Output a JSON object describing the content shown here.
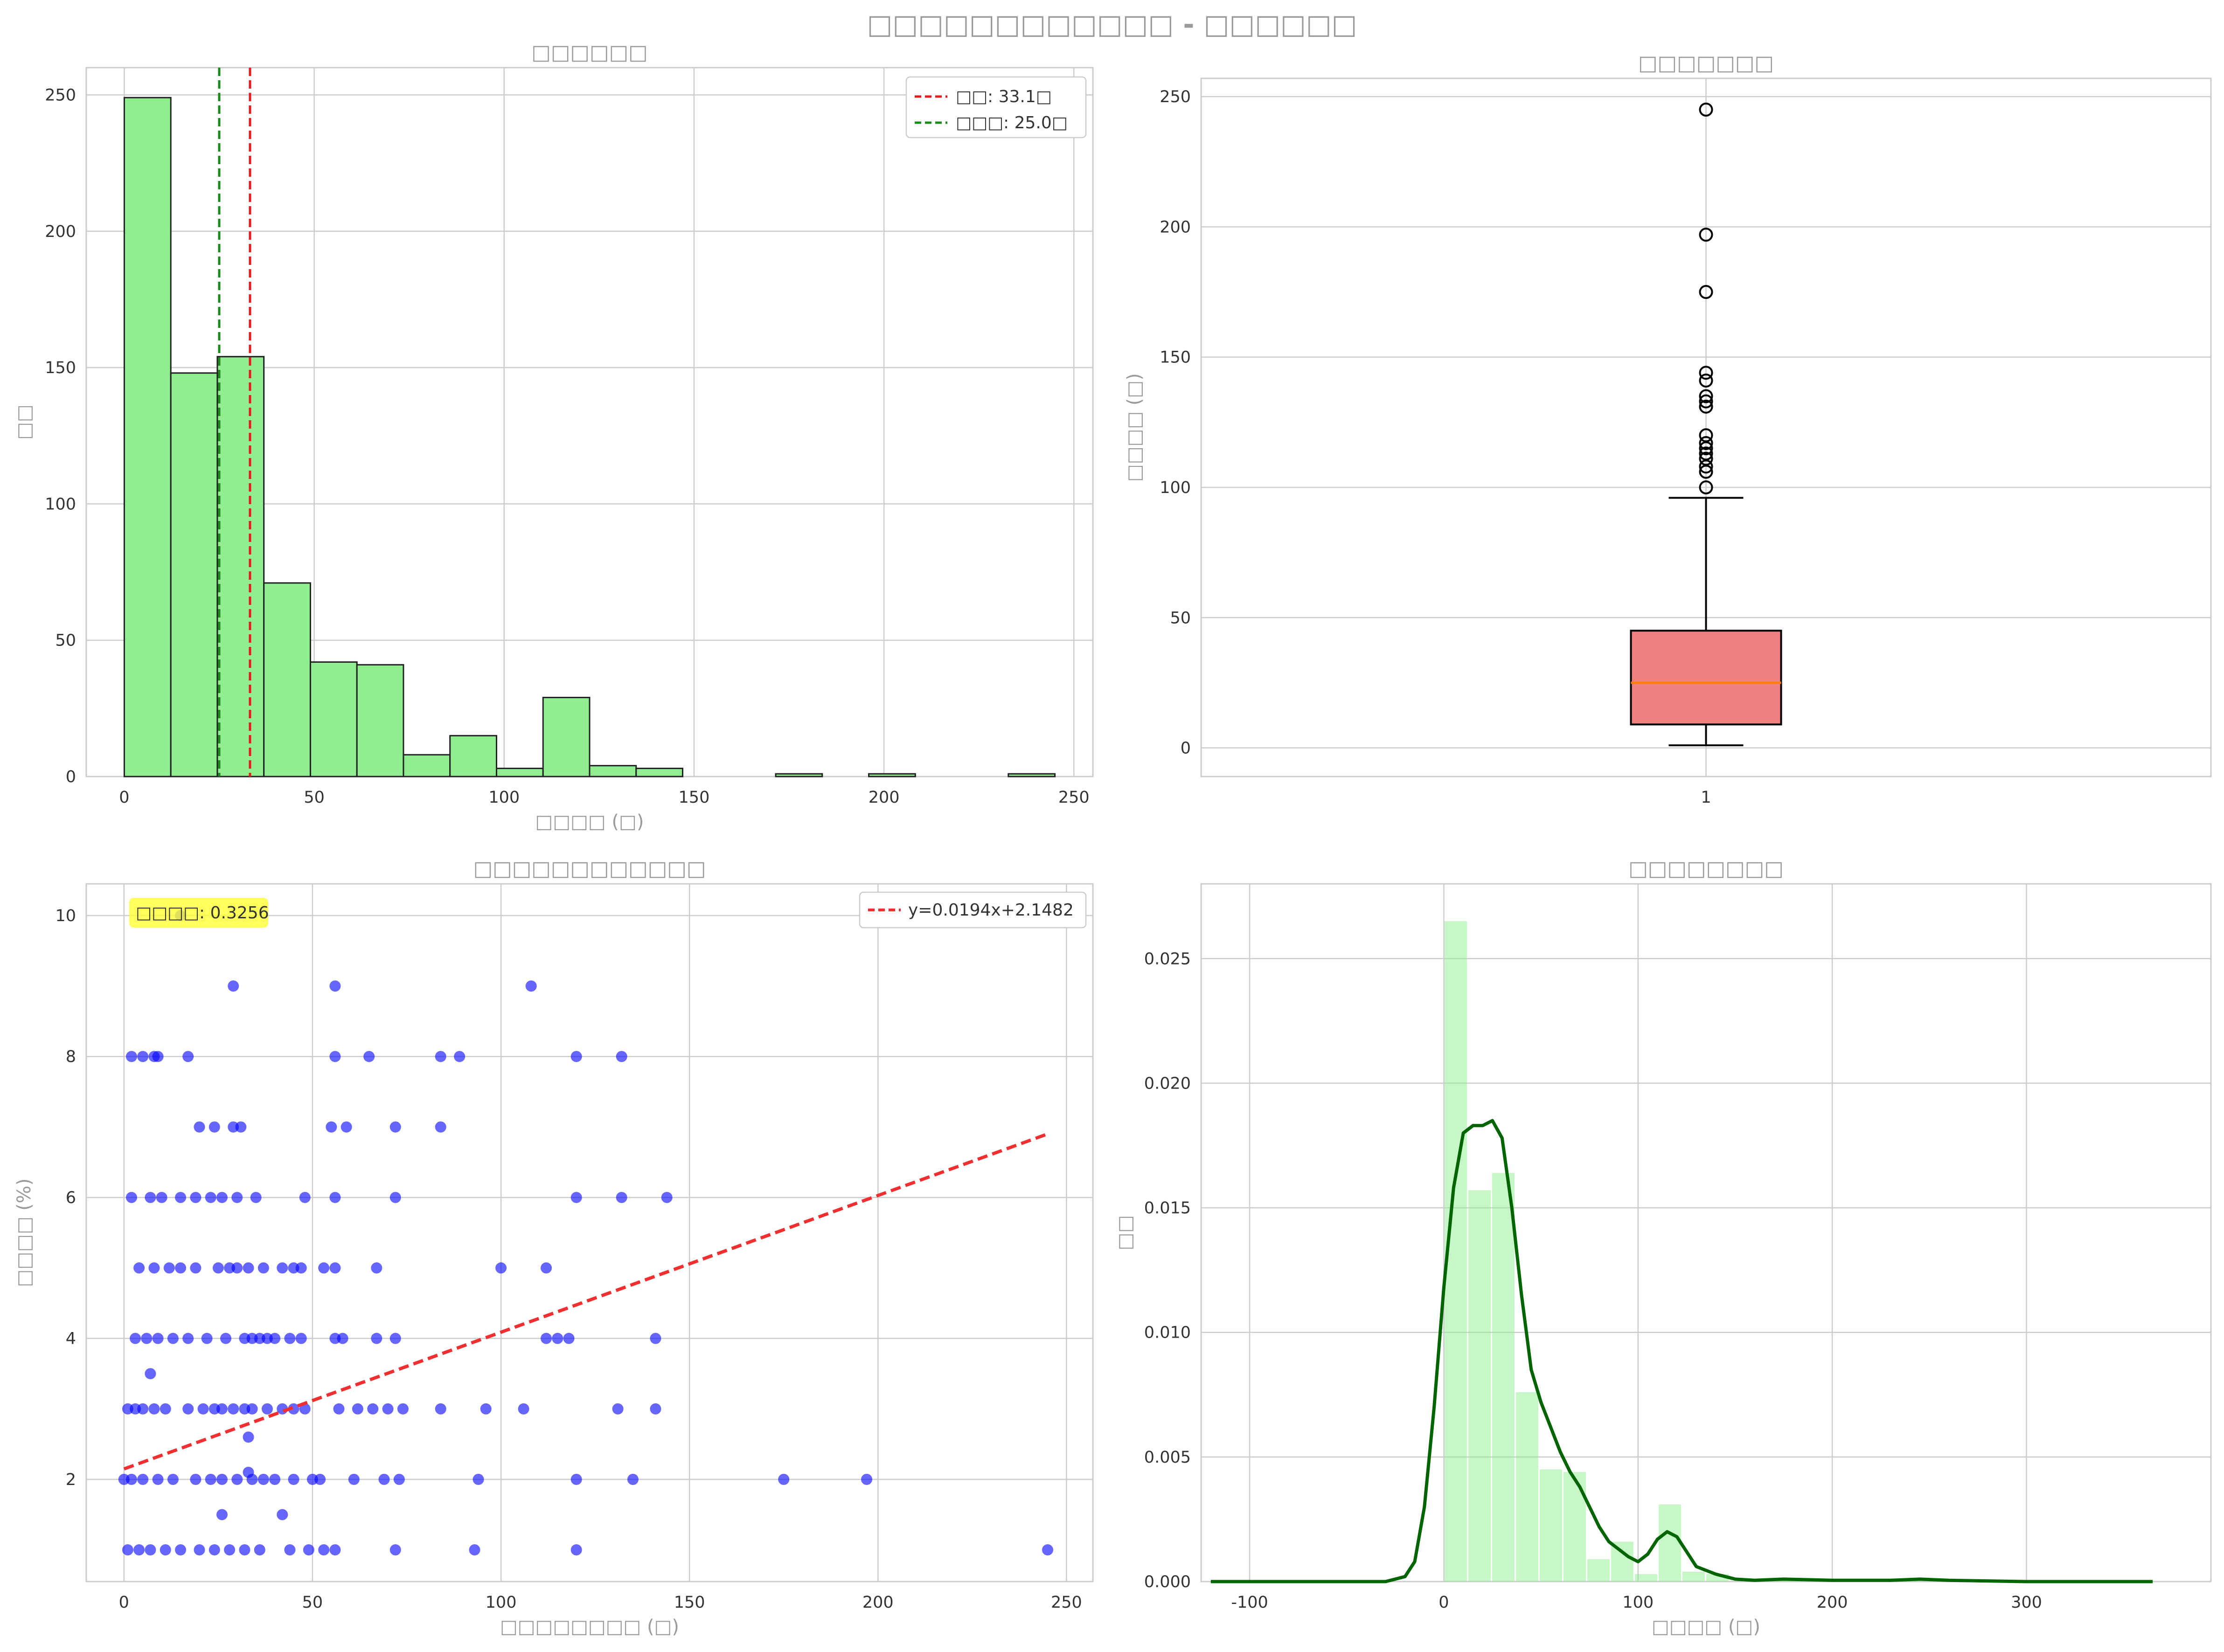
{
  "figure": {
    "title": "□□□□□□□□□□□□ - □□□□□□"
  },
  "chart_data": [
    {
      "type": "bar",
      "subtype": "histogram",
      "title": "□□□□□□",
      "xlabel": "□□□□ (□)",
      "ylabel": "□□",
      "xlim": [
        -10,
        255
      ],
      "ylim": [
        0,
        260
      ],
      "xticks": [
        0,
        50,
        100,
        150,
        200,
        250
      ],
      "yticks": [
        0,
        50,
        100,
        150,
        200,
        250
      ],
      "grid": true,
      "legend_position": "top-right",
      "bin_edges": [
        0,
        12.25,
        24.5,
        36.75,
        49,
        61.25,
        73.5,
        85.75,
        98,
        110.25,
        122.5,
        134.75,
        147,
        159.25,
        171.5,
        183.75,
        196,
        208.25,
        220.5,
        232.75,
        245
      ],
      "counts": [
        249,
        148,
        154,
        71,
        42,
        41,
        8,
        15,
        3,
        29,
        4,
        3,
        0,
        0,
        1,
        0,
        1,
        0,
        0,
        1
      ],
      "bar_color": "#90ee90",
      "reference_lines": [
        {
          "label": "□□: 33.1□",
          "x": 33.1,
          "color": "#e41a1c"
        },
        {
          "label": "□□□: 25.0□",
          "x": 25.0,
          "color": "#1a8a1a"
        }
      ]
    },
    {
      "type": "box",
      "title": "□□□□□□□",
      "xlabel": "",
      "ylabel": "□□□□ (□)",
      "ylim": [
        -11,
        257
      ],
      "yticks": [
        0,
        50,
        100,
        150,
        200,
        250
      ],
      "grid": true,
      "categories": [
        "1"
      ],
      "box": {
        "min": 1,
        "q1": 9,
        "median": 25,
        "q3": 45,
        "max": 96
      },
      "outliers": [
        100,
        106,
        108,
        111,
        113,
        115,
        117,
        120,
        131,
        133,
        135,
        141,
        144,
        175,
        197,
        245
      ],
      "box_color": "#f08080",
      "median_color": "#ff7f0e"
    },
    {
      "type": "scatter",
      "title": "□□□□□□□□□□□□",
      "xlabel": "□□□□□□□□ (□)",
      "ylabel": "□□□□ (%)",
      "xlim": [
        -10,
        257
      ],
      "ylim": [
        0.55,
        10.45
      ],
      "xticks": [
        0,
        50,
        100,
        150,
        200,
        250
      ],
      "yticks": [
        2,
        4,
        6,
        8,
        10
      ],
      "grid": true,
      "legend_position": "top-right",
      "annotation": "□□□□: 0.3256",
      "fit_line": {
        "label": "y=0.0194x+2.1482",
        "slope": 0.0194,
        "intercept": 2.1482,
        "x_range": [
          0,
          245
        ]
      },
      "point_color": "#0000ff",
      "points": [
        [
          15,
          10
        ],
        [
          29,
          9
        ],
        [
          56,
          9
        ],
        [
          108,
          9
        ],
        [
          2,
          8
        ],
        [
          5,
          8
        ],
        [
          8,
          8
        ],
        [
          9,
          8
        ],
        [
          17,
          8
        ],
        [
          56,
          8
        ],
        [
          65,
          8
        ],
        [
          84,
          8
        ],
        [
          89,
          8
        ],
        [
          120,
          8
        ],
        [
          132,
          8
        ],
        [
          20,
          7
        ],
        [
          24,
          7
        ],
        [
          29,
          7
        ],
        [
          31,
          7
        ],
        [
          55,
          7
        ],
        [
          59,
          7
        ],
        [
          72,
          7
        ],
        [
          84,
          7
        ],
        [
          2,
          6
        ],
        [
          7,
          6
        ],
        [
          10,
          6
        ],
        [
          15,
          6
        ],
        [
          19,
          6
        ],
        [
          23,
          6
        ],
        [
          26,
          6
        ],
        [
          30,
          6
        ],
        [
          35,
          6
        ],
        [
          48,
          6
        ],
        [
          56,
          6
        ],
        [
          72,
          6
        ],
        [
          120,
          6
        ],
        [
          132,
          6
        ],
        [
          144,
          6
        ],
        [
          4,
          5
        ],
        [
          8,
          5
        ],
        [
          12,
          5
        ],
        [
          15,
          5
        ],
        [
          19,
          5
        ],
        [
          25,
          5
        ],
        [
          28,
          5
        ],
        [
          30,
          5
        ],
        [
          33,
          5
        ],
        [
          37,
          5
        ],
        [
          42,
          5
        ],
        [
          45,
          5
        ],
        [
          47,
          5
        ],
        [
          53,
          5
        ],
        [
          56,
          5
        ],
        [
          67,
          5
        ],
        [
          100,
          5
        ],
        [
          112,
          5
        ],
        [
          3,
          4
        ],
        [
          6,
          4
        ],
        [
          9,
          4
        ],
        [
          13,
          4
        ],
        [
          17,
          4
        ],
        [
          22,
          4
        ],
        [
          27,
          4
        ],
        [
          32,
          4
        ],
        [
          34,
          4
        ],
        [
          36,
          4
        ],
        [
          38,
          4
        ],
        [
          40,
          4
        ],
        [
          44,
          4
        ],
        [
          47,
          4
        ],
        [
          56,
          4
        ],
        [
          58,
          4
        ],
        [
          67,
          4
        ],
        [
          72,
          4
        ],
        [
          112,
          4
        ],
        [
          115,
          4
        ],
        [
          118,
          4
        ],
        [
          141,
          4
        ],
        [
          7,
          3.5
        ],
        [
          1,
          3
        ],
        [
          3,
          3
        ],
        [
          5,
          3
        ],
        [
          8,
          3
        ],
        [
          11,
          3
        ],
        [
          17,
          3
        ],
        [
          21,
          3
        ],
        [
          24,
          3
        ],
        [
          26,
          3
        ],
        [
          29,
          3
        ],
        [
          32,
          3
        ],
        [
          34,
          3
        ],
        [
          38,
          3
        ],
        [
          42,
          3
        ],
        [
          45,
          3
        ],
        [
          48,
          3
        ],
        [
          57,
          3
        ],
        [
          62,
          3
        ],
        [
          66,
          3
        ],
        [
          70,
          3
        ],
        [
          74,
          3
        ],
        [
          84,
          3
        ],
        [
          96,
          3
        ],
        [
          106,
          3
        ],
        [
          131,
          3
        ],
        [
          141,
          3
        ],
        [
          33,
          2.6
        ],
        [
          33,
          2.1
        ],
        [
          0,
          2
        ],
        [
          2,
          2
        ],
        [
          5,
          2
        ],
        [
          9,
          2
        ],
        [
          13,
          2
        ],
        [
          19,
          2
        ],
        [
          23,
          2
        ],
        [
          26,
          2
        ],
        [
          30,
          2
        ],
        [
          34,
          2
        ],
        [
          37,
          2
        ],
        [
          40,
          2
        ],
        [
          45,
          2
        ],
        [
          50,
          2
        ],
        [
          52,
          2
        ],
        [
          61,
          2
        ],
        [
          69,
          2
        ],
        [
          73,
          2
        ],
        [
          94,
          2
        ],
        [
          120,
          2
        ],
        [
          135,
          2
        ],
        [
          175,
          2
        ],
        [
          197,
          2
        ],
        [
          26,
          1.5
        ],
        [
          42,
          1.5
        ],
        [
          1,
          1
        ],
        [
          4,
          1
        ],
        [
          7,
          1
        ],
        [
          11,
          1
        ],
        [
          15,
          1
        ],
        [
          20,
          1
        ],
        [
          24,
          1
        ],
        [
          28,
          1
        ],
        [
          32,
          1
        ],
        [
          36,
          1
        ],
        [
          44,
          1
        ],
        [
          49,
          1
        ],
        [
          53,
          1
        ],
        [
          56,
          1
        ],
        [
          72,
          1
        ],
        [
          93,
          1
        ],
        [
          120,
          1
        ],
        [
          245,
          1
        ]
      ]
    },
    {
      "type": "area",
      "subtype": "density_histogram_with_kde",
      "title": "□□□□□□□□",
      "xlabel": "□□□□ (□)",
      "ylabel": "□□",
      "xlim": [
        -125,
        395
      ],
      "ylim": [
        0,
        0.028
      ],
      "xticks": [
        -100,
        0,
        100,
        200,
        300
      ],
      "yticks": [
        0.0,
        0.005,
        0.01,
        0.015,
        0.02,
        0.025
      ],
      "grid": true,
      "bar_color": "#90ee90",
      "kde_color": "#006400",
      "bin_edges": [
        0,
        12.25,
        24.5,
        36.75,
        49,
        61.25,
        73.5,
        85.75,
        98,
        110.25,
        122.5,
        134.75,
        147,
        159.25,
        171.5,
        183.75,
        196,
        208.25,
        220.5,
        232.75,
        245
      ],
      "density": [
        0.0265,
        0.0157,
        0.0164,
        0.0076,
        0.0045,
        0.0044,
        0.0009,
        0.0016,
        0.0003,
        0.0031,
        0.0004,
        0.0003,
        0,
        0,
        0.0001,
        0,
        0.0001,
        0,
        0,
        0.0001
      ],
      "kde": {
        "x": [
          -120,
          -60,
          -30,
          -20,
          -15,
          -10,
          -5,
          0,
          5,
          10,
          15,
          20,
          25,
          30,
          35,
          40,
          45,
          50,
          55,
          60,
          65,
          70,
          75,
          80,
          85,
          90,
          95,
          100,
          105,
          110,
          115,
          120,
          125,
          130,
          140,
          150,
          160,
          175,
          200,
          230,
          245,
          260,
          300,
          365
        ],
        "y": [
          0,
          0,
          0.0,
          0.0002,
          0.0008,
          0.003,
          0.007,
          0.0118,
          0.0158,
          0.018,
          0.0183,
          0.0183,
          0.0185,
          0.0178,
          0.015,
          0.0115,
          0.0085,
          0.0072,
          0.0062,
          0.0052,
          0.0044,
          0.0038,
          0.003,
          0.0022,
          0.0016,
          0.0013,
          0.001,
          0.0008,
          0.0011,
          0.0017,
          0.002,
          0.0018,
          0.0012,
          0.0006,
          0.0003,
          0.0001,
          5e-05,
          0.0001,
          5e-05,
          5e-05,
          0.0001,
          5e-05,
          0,
          0
        ]
      }
    }
  ]
}
